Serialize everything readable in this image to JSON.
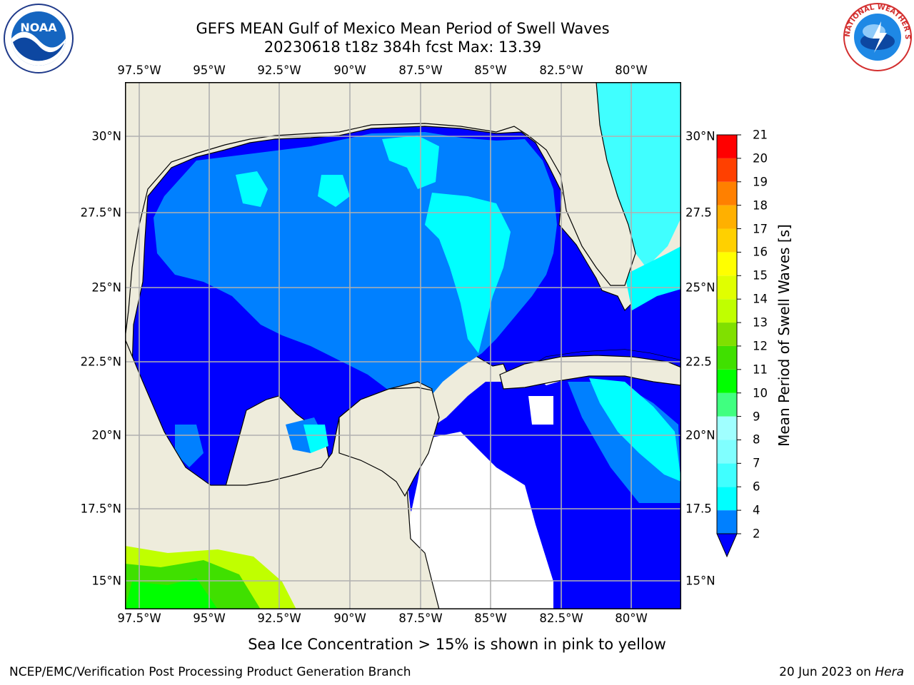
{
  "title_line1": "GEFS MEAN Gulf of Mexico Mean Period of Swell Waves",
  "title_line2": "20230618 t18z 384h fcst   Max: 13.39",
  "lon_ticks": [
    "97.5°W",
    "95°W",
    "92.5°W",
    "90°W",
    "87.5°W",
    "85°W",
    "82.5°W",
    "80°W"
  ],
  "lat_ticks_left": [
    "30°N",
    "27.5°N",
    "25°N",
    "22.5°N",
    "20°N",
    "17.5°N",
    "15°N"
  ],
  "lat_ticks_right": [
    "30°N",
    "27.5",
    "25°N",
    "22.5",
    "20°N",
    "17.5",
    "15°N"
  ],
  "colorbar": {
    "label": "Mean Period of Swell Waves [s]",
    "levels": [
      "2",
      "4",
      "6",
      "7",
      "8",
      "9",
      "10",
      "11",
      "12",
      "13",
      "14",
      "15",
      "16",
      "17",
      "18",
      "19",
      "20",
      "21"
    ],
    "colors": [
      "#0000ff",
      "#0080ff",
      "#00ffff",
      "#40ffff",
      "#80ffff",
      "#a0ffff",
      "#40ff80",
      "#00ff00",
      "#40e000",
      "#80e000",
      "#c0ff00",
      "#e0ff00",
      "#ffff00",
      "#ffd000",
      "#ffb000",
      "#ff8000",
      "#ff4000",
      "#ff0000"
    ],
    "extend": "min"
  },
  "colors": {
    "land": "#eeecdc",
    "grid": "#b0b0b0"
  },
  "logos": {
    "noaa_text": "NOAA",
    "nws_text": "NATIONAL WEATHER SERVICE"
  },
  "footnote": "Sea Ice Concentration > 15% is shown in pink to yellow",
  "credit": "NCEP/EMC/Verification Post Processing Product Generation Branch",
  "date_text": "20 Jun 2023 on ",
  "date_host": "Hera"
}
